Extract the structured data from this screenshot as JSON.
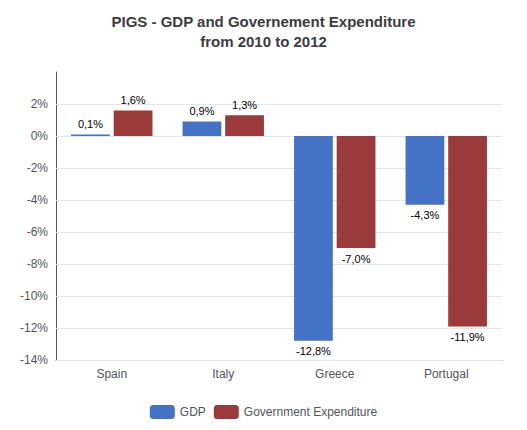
{
  "chart_data": {
    "type": "bar",
    "title": "PIGS - GDP and Governement Expenditure\nfrom 2010 to 2012",
    "categories": [
      "Spain",
      "Italy",
      "Greece",
      "Portugal"
    ],
    "series": [
      {
        "name": "GDP",
        "color": "#4472C4",
        "values": [
          0.1,
          0.9,
          -12.8,
          -4.3
        ],
        "value_labels": [
          "0,1%",
          "0,9%",
          "-12,8%",
          "-4,3%"
        ]
      },
      {
        "name": "Government Expenditure",
        "color": "#9B3A3A",
        "values": [
          1.6,
          1.3,
          -7.0,
          -11.9
        ],
        "value_labels": [
          "1,6%",
          "1,3%",
          "-7,0%",
          "-11,9%"
        ]
      }
    ],
    "ylim": [
      -14,
      4
    ],
    "yticks": [
      {
        "value": 2,
        "label": "2%"
      },
      {
        "value": 0,
        "label": "0%"
      },
      {
        "value": -2,
        "label": "-2%"
      },
      {
        "value": -4,
        "label": "-4%"
      },
      {
        "value": -6,
        "label": "-6%"
      },
      {
        "value": -8,
        "label": "-8%"
      },
      {
        "value": -10,
        "label": "-10%"
      },
      {
        "value": -12,
        "label": "-12%"
      },
      {
        "value": -14,
        "label": "-14%"
      }
    ],
    "grid": true,
    "legend": "bottom",
    "data_labels": true
  }
}
